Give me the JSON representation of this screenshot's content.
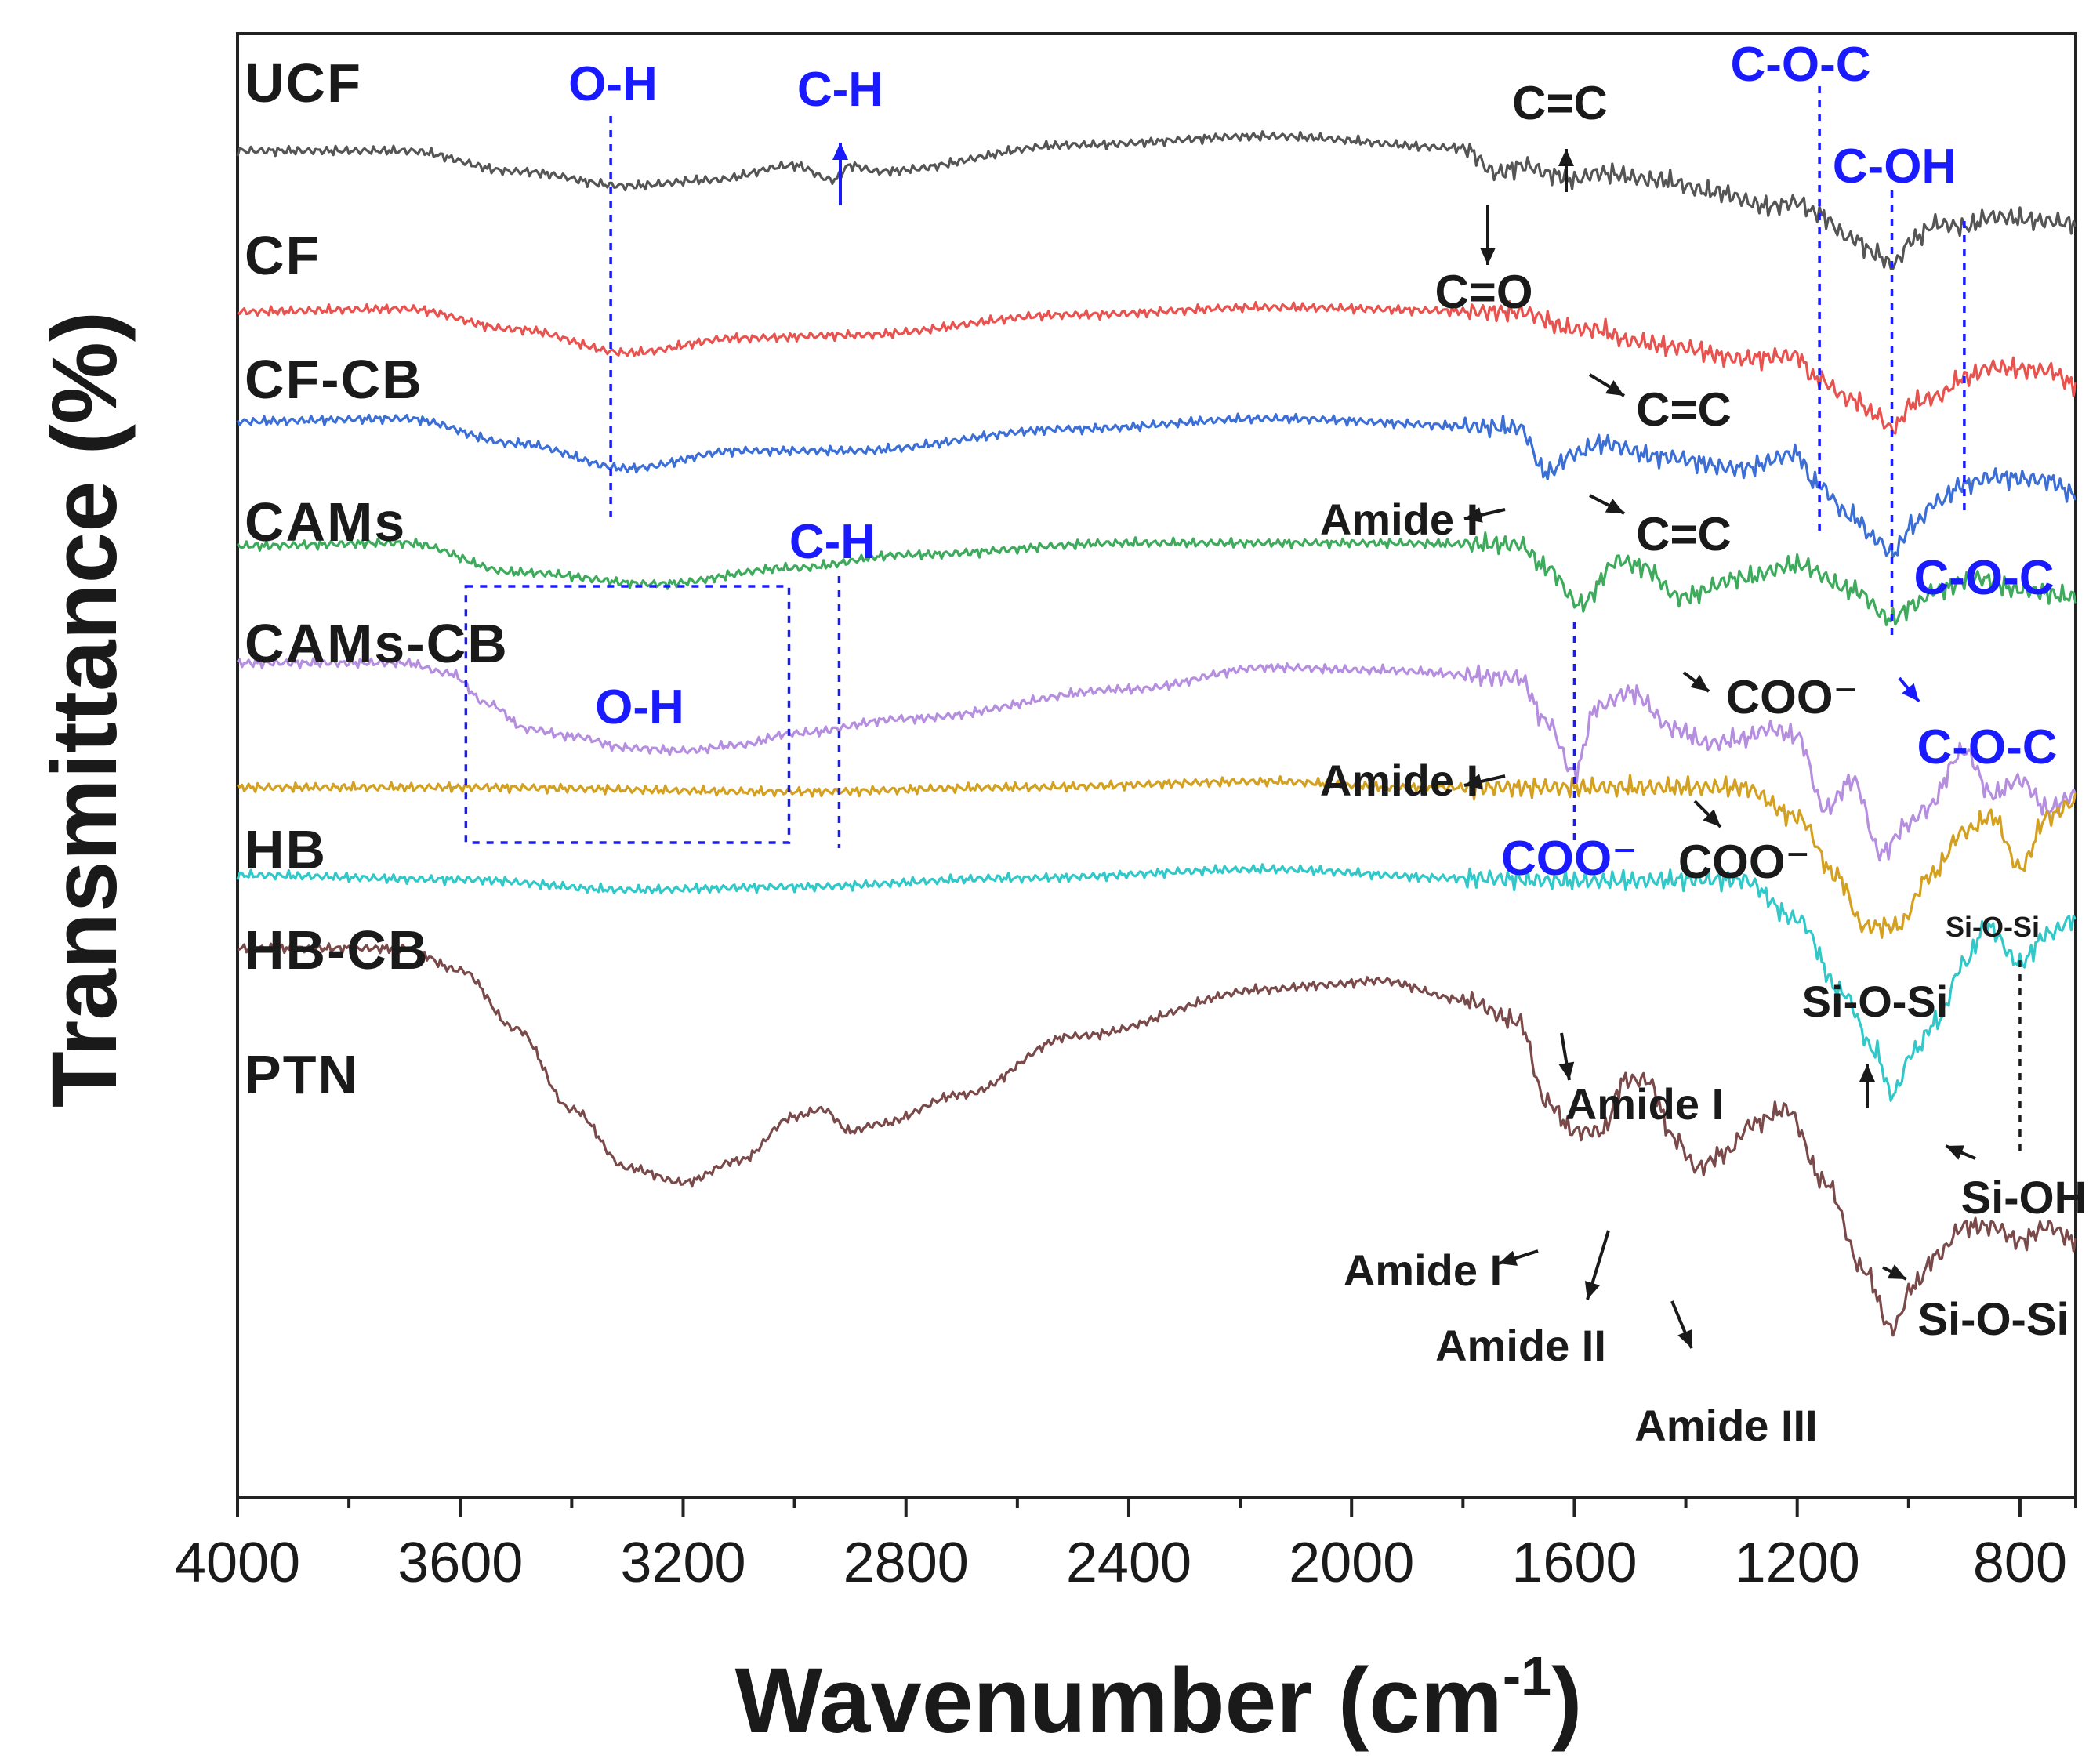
{
  "chart_data": {
    "type": "line",
    "title": "",
    "xlabel": "Wavenumber (cm",
    "xlabel_sup": "-1",
    "xlabel_close": ")",
    "ylabel": "Transmittance (%)",
    "xlim": [
      4000,
      700
    ],
    "x_ticks": [
      4000,
      3600,
      3200,
      2800,
      2400,
      2000,
      1600,
      1200,
      800
    ],
    "x_tick_labels": [
      "4000",
      "3600",
      "3200",
      "2800",
      "2400",
      "2000",
      "1600",
      "1200",
      "800"
    ],
    "y_scale": "offset stacked transmittance (arbitrary units, 0-100)",
    "series": [
      {
        "name": "UCF",
        "color": "#555555",
        "offset": 92,
        "points": [
          [
            4000,
            0
          ],
          [
            3700,
            0
          ],
          [
            3500,
            -1.4
          ],
          [
            3300,
            -2.4
          ],
          [
            3150,
            -2
          ],
          [
            3000,
            -1
          ],
          [
            2930,
            -2
          ],
          [
            2900,
            -1
          ],
          [
            2850,
            -1.4
          ],
          [
            2500,
            0.4
          ],
          [
            2150,
            1
          ],
          [
            1800,
            0.2
          ],
          [
            1740,
            -1.5
          ],
          [
            1690,
            -1
          ],
          [
            1640,
            -1.6
          ],
          [
            1600,
            -2
          ],
          [
            1560,
            -1.5
          ],
          [
            1450,
            -2
          ],
          [
            1350,
            -2.8
          ],
          [
            1250,
            -3.8
          ],
          [
            1200,
            -3.5
          ],
          [
            1170,
            -4.2
          ],
          [
            1100,
            -6
          ],
          [
            1060,
            -7
          ],
          [
            1030,
            -7.8
          ],
          [
            990,
            -6
          ],
          [
            950,
            -5
          ],
          [
            900,
            -5.2
          ],
          [
            850,
            -4.5
          ],
          [
            750,
            -4.8
          ],
          [
            700,
            -5
          ]
        ]
      },
      {
        "name": "CF",
        "color": "#e8534f",
        "offset": 81,
        "points": [
          [
            4000,
            0
          ],
          [
            3700,
            0.2
          ],
          [
            3500,
            -1.2
          ],
          [
            3300,
            -2.8
          ],
          [
            3100,
            -1.8
          ],
          [
            2900,
            -1.6
          ],
          [
            2500,
            -0.2
          ],
          [
            2150,
            0.3
          ],
          [
            1700,
            0
          ],
          [
            1600,
            -1.2
          ],
          [
            1560,
            -1.2
          ],
          [
            1500,
            -2
          ],
          [
            1420,
            -2.4
          ],
          [
            1300,
            -3.2
          ],
          [
            1200,
            -3
          ],
          [
            1170,
            -4.5
          ],
          [
            1100,
            -6
          ],
          [
            1060,
            -7
          ],
          [
            1030,
            -8
          ],
          [
            990,
            -6.2
          ],
          [
            950,
            -5.8
          ],
          [
            900,
            -4.5
          ],
          [
            850,
            -3.8
          ],
          [
            750,
            -4
          ],
          [
            700,
            -5
          ]
        ]
      },
      {
        "name": "CF-CB",
        "color": "#3b6fd6",
        "offset": 73.5,
        "points": [
          [
            4000,
            0
          ],
          [
            3700,
            0.2
          ],
          [
            3500,
            -1.5
          ],
          [
            3300,
            -3.2
          ],
          [
            3100,
            -2
          ],
          [
            2900,
            -2
          ],
          [
            2500,
            -0.5
          ],
          [
            2150,
            0.2
          ],
          [
            1700,
            -0.4
          ],
          [
            1650,
            -3.5
          ],
          [
            1600,
            -2.2
          ],
          [
            1550,
            -1.5
          ],
          [
            1450,
            -2.4
          ],
          [
            1300,
            -3.2
          ],
          [
            1200,
            -2.2
          ],
          [
            1170,
            -4.2
          ],
          [
            1100,
            -6.5
          ],
          [
            1060,
            -8
          ],
          [
            1030,
            -9
          ],
          [
            990,
            -7
          ],
          [
            950,
            -5.5
          ],
          [
            900,
            -4.3
          ],
          [
            850,
            -3.8
          ],
          [
            750,
            -4
          ],
          [
            700,
            -5
          ]
        ]
      },
      {
        "name": "CAMs",
        "color": "#3daa5c",
        "offset": 65,
        "points": [
          [
            4000,
            0
          ],
          [
            3700,
            0.2
          ],
          [
            3500,
            -1.8
          ],
          [
            3250,
            -2.6
          ],
          [
            3000,
            -1.5
          ],
          [
            2800,
            -0.6
          ],
          [
            2400,
            0.2
          ],
          [
            2000,
            0.2
          ],
          [
            1700,
            0.1
          ],
          [
            1650,
            -1.5
          ],
          [
            1590,
            -4
          ],
          [
            1520,
            -1
          ],
          [
            1480,
            -1.4
          ],
          [
            1410,
            -3.5
          ],
          [
            1300,
            -2.2
          ],
          [
            1200,
            -1.3
          ],
          [
            1100,
            -3
          ],
          [
            1030,
            -5
          ],
          [
            990,
            -4
          ],
          [
            950,
            -3
          ],
          [
            880,
            -2.2
          ],
          [
            800,
            -3
          ],
          [
            700,
            -3.5
          ]
        ]
      },
      {
        "name": "CAMs-CB",
        "color": "#b58ee0",
        "offset": 57,
        "points": [
          [
            4000,
            0
          ],
          [
            3700,
            0
          ],
          [
            3620,
            -0.7
          ],
          [
            3550,
            -2.8
          ],
          [
            3480,
            -4.5
          ],
          [
            3400,
            -5
          ],
          [
            3300,
            -5.8
          ],
          [
            3200,
            -6
          ],
          [
            3100,
            -5.6
          ],
          [
            3000,
            -4.8
          ],
          [
            2800,
            -3.8
          ],
          [
            2400,
            -1.8
          ],
          [
            2150,
            -0.3
          ],
          [
            1950,
            -0.5
          ],
          [
            1700,
            -1
          ],
          [
            1650,
            -4
          ],
          [
            1600,
            -7.5
          ],
          [
            1560,
            -3
          ],
          [
            1500,
            -2
          ],
          [
            1420,
            -4.5
          ],
          [
            1360,
            -5.5
          ],
          [
            1300,
            -5.2
          ],
          [
            1250,
            -4.5
          ],
          [
            1200,
            -5
          ],
          [
            1150,
            -10
          ],
          [
            1100,
            -8
          ],
          [
            1050,
            -13
          ],
          [
            1000,
            -11
          ],
          [
            970,
            -10
          ],
          [
            900,
            -6
          ],
          [
            850,
            -9
          ],
          [
            800,
            -8
          ],
          [
            750,
            -10
          ],
          [
            700,
            -9
          ]
        ]
      },
      {
        "name": "HB",
        "color": "#d4a020",
        "offset": 48.5,
        "points": [
          [
            4000,
            0
          ],
          [
            3600,
            0
          ],
          [
            3000,
            -0.3
          ],
          [
            2600,
            0
          ],
          [
            2150,
            0.4
          ],
          [
            1900,
            0
          ],
          [
            1300,
            0
          ],
          [
            1200,
            -2
          ],
          [
            1130,
            -6
          ],
          [
            1080,
            -9.5
          ],
          [
            1020,
            -9.5
          ],
          [
            960,
            -6
          ],
          [
            900,
            -3
          ],
          [
            850,
            -2
          ],
          [
            800,
            -5.5
          ],
          [
            750,
            -2
          ],
          [
            700,
            -1
          ]
        ]
      },
      {
        "name": "HB-CB",
        "color": "#30c8c8",
        "offset": 42.5,
        "points": [
          [
            4000,
            0
          ],
          [
            3600,
            -0.3
          ],
          [
            3300,
            -1
          ],
          [
            3000,
            -0.8
          ],
          [
            2600,
            -0.2
          ],
          [
            2150,
            0.4
          ],
          [
            1800,
            -0.2
          ],
          [
            1600,
            -0.4
          ],
          [
            1300,
            -0.3
          ],
          [
            1200,
            -3
          ],
          [
            1120,
            -8
          ],
          [
            1060,
            -12
          ],
          [
            1030,
            -15
          ],
          [
            990,
            -12
          ],
          [
            950,
            -10
          ],
          [
            900,
            -6
          ],
          [
            860,
            -3.5
          ],
          [
            800,
            -6
          ],
          [
            750,
            -4
          ],
          [
            700,
            -3
          ]
        ]
      },
      {
        "name": "PTN",
        "color": "#7a4a4a",
        "offset": 37.5,
        "points": [
          [
            4000,
            0
          ],
          [
            3700,
            0
          ],
          [
            3600,
            -1.5
          ],
          [
            3500,
            -5.5
          ],
          [
            3400,
            -11
          ],
          [
            3300,
            -15
          ],
          [
            3200,
            -16
          ],
          [
            3100,
            -14.5
          ],
          [
            3000,
            -11.5
          ],
          [
            2950,
            -11
          ],
          [
            2900,
            -12.5
          ],
          [
            2850,
            -12
          ],
          [
            2700,
            -10
          ],
          [
            2500,
            -6
          ],
          [
            2150,
            -2.8
          ],
          [
            2050,
            -2.5
          ],
          [
            1950,
            -2.2
          ],
          [
            1800,
            -3.5
          ],
          [
            1700,
            -5
          ],
          [
            1650,
            -10.5
          ],
          [
            1600,
            -12.5
          ],
          [
            1550,
            -12.5
          ],
          [
            1510,
            -9
          ],
          [
            1470,
            -9
          ],
          [
            1420,
            -13
          ],
          [
            1380,
            -15
          ],
          [
            1330,
            -14
          ],
          [
            1280,
            -12
          ],
          [
            1220,
            -11
          ],
          [
            1150,
            -16
          ],
          [
            1080,
            -22
          ],
          [
            1030,
            -26
          ],
          [
            990,
            -23
          ],
          [
            950,
            -21
          ],
          [
            900,
            -19
          ],
          [
            850,
            -19
          ],
          [
            800,
            -20
          ],
          [
            750,
            -19
          ],
          [
            700,
            -20
          ]
        ]
      }
    ],
    "annotations": [
      {
        "text": "O-H",
        "color": "blue"
      },
      {
        "text": "C-H",
        "color": "blue"
      },
      {
        "text": "C=C",
        "color": "black"
      },
      {
        "text": "C=O",
        "color": "black"
      },
      {
        "text": "C-O-C",
        "color": "blue"
      },
      {
        "text": "C-OH",
        "color": "blue"
      },
      {
        "text": "C=C",
        "color": "black"
      },
      {
        "text": "Amide I",
        "color": "black"
      },
      {
        "text": "C=C",
        "color": "black"
      },
      {
        "text": "C-O-C",
        "color": "blue"
      },
      {
        "text": "C-H",
        "color": "blue"
      },
      {
        "text": "O-H",
        "color": "blue"
      },
      {
        "text": "COO⁻",
        "color": "black"
      },
      {
        "text": "C-O-C",
        "color": "blue"
      },
      {
        "text": "Amide I",
        "color": "black"
      },
      {
        "text": "COO⁻",
        "color": "blue"
      },
      {
        "text": "COO⁻",
        "color": "black"
      },
      {
        "text": "Si-O-Si",
        "color": "black"
      },
      {
        "text": "Si-O-Si",
        "color": "black"
      },
      {
        "text": "Amide I",
        "color": "black"
      },
      {
        "text": "Si-OH",
        "color": "black"
      },
      {
        "text": "Amide I",
        "color": "black"
      },
      {
        "text": "Si-O-Si",
        "color": "black"
      },
      {
        "text": "Amide II",
        "color": "black"
      },
      {
        "text": "Amide III",
        "color": "black"
      }
    ],
    "marker_lines_wavenumber": [
      3330,
      2920,
      1600,
      1160,
      1030,
      900,
      800
    ],
    "grid": false,
    "legend": "labels placed at the left of each curve"
  },
  "colors": {
    "axis": "#222222",
    "annotation_blue": "#1a1aff",
    "annotation_black": "#1a1a1a"
  }
}
